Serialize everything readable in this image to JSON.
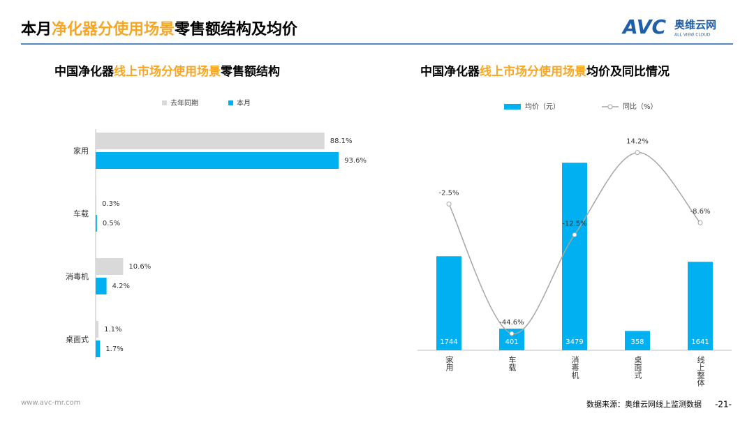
{
  "header": {
    "title_parts": [
      "本月",
      "净化器分使用场景",
      "零售额结构及均价"
    ],
    "logo": "AVC",
    "logo_cn": "奥维云网",
    "logo_en": "ALL VIEW CLOUD"
  },
  "chart_data": [
    {
      "type": "hbar",
      "title_parts": [
        "中国净化器",
        "线上市场分使用场景",
        "零售额结构"
      ],
      "categories": [
        "家用",
        "车载",
        "消毒机",
        "桌面式"
      ],
      "series": [
        {
          "name": "去年同期",
          "color": "#d9d9d9",
          "values": [
            88.1,
            0.3,
            10.6,
            1.1
          ],
          "value_labels": [
            "88.1%",
            "0.3%",
            "10.6%",
            "1.1%"
          ]
        },
        {
          "name": "本月",
          "color": "#00b0f0",
          "values": [
            93.6,
            0.5,
            4.2,
            1.7
          ],
          "value_labels": [
            "93.6%",
            "0.5%",
            "4.2%",
            "1.7%"
          ]
        }
      ],
      "xlim": [
        0,
        100
      ]
    },
    {
      "type": "bar-line",
      "title_parts": [
        "中国净化器",
        "线上市场分使用场景",
        "均价及同比情况"
      ],
      "categories": [
        "家用",
        "车载",
        "消毒机",
        "桌面式",
        "线上整体"
      ],
      "series": [
        {
          "name": "均价（元）",
          "color": "#00b0f0",
          "values": [
            1744,
            401,
            3479,
            358,
            1641
          ]
        },
        {
          "name": "同比（%）",
          "color": "#a6a6a6",
          "axis": "y2",
          "values": [
            -2.5,
            -44.6,
            -12.5,
            14.2,
            -8.6
          ],
          "value_labels": [
            "-2.5%",
            "-44.6%",
            "-12.5%",
            "14.2%",
            "-8.6%"
          ]
        }
      ],
      "ylim": [
        0,
        4000
      ],
      "y2lim": [
        -50,
        20
      ]
    }
  ],
  "footer": {
    "url": "www.avc-mr.com",
    "source": "数据来源：奥维云网线上监测数据",
    "page": "-21-"
  }
}
